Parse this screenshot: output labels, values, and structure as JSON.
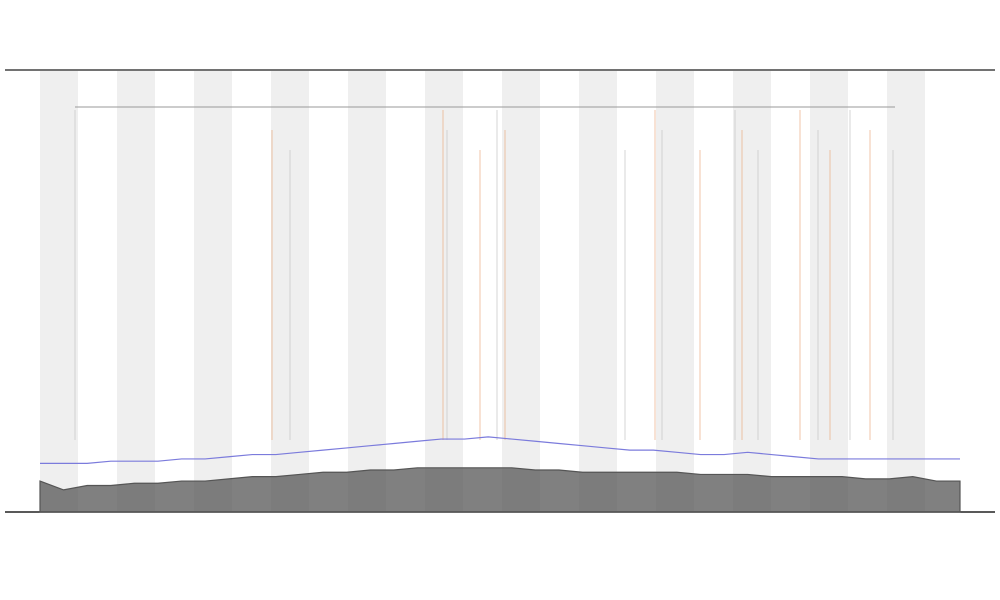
{
  "chart_data": {
    "type": "line",
    "x": [
      0,
      1,
      2,
      3,
      4,
      5,
      6,
      7,
      8,
      9,
      10,
      11,
      12,
      13,
      14,
      15,
      16,
      17,
      18,
      19,
      20,
      21,
      22,
      23,
      24,
      25,
      26,
      27,
      28,
      29,
      30,
      31,
      32,
      33,
      34,
      35,
      36,
      37,
      38,
      39
    ],
    "xlim": [
      0,
      39
    ],
    "ylim": [
      0,
      100
    ],
    "series": [
      {
        "color": "#7b7bdc",
        "fill": false,
        "values": [
          11,
          11,
          11,
          11.5,
          11.5,
          11.5,
          12,
          12,
          12.5,
          13,
          13,
          13.5,
          14,
          14.5,
          15,
          15.5,
          16,
          16.5,
          16.5,
          17,
          16.5,
          16,
          15.5,
          15,
          14.5,
          14,
          14,
          13.5,
          13,
          13,
          13.5,
          13,
          12.5,
          12,
          12,
          12,
          12,
          12,
          12,
          12
        ]
      },
      {
        "color": "#555555",
        "fill": true,
        "values": [
          7,
          5,
          6,
          6,
          6.5,
          6.5,
          7,
          7,
          7.5,
          8,
          8,
          8.5,
          9,
          9,
          9.5,
          9.5,
          10,
          10,
          10,
          10,
          10,
          9.5,
          9.5,
          9,
          9,
          9,
          9,
          9,
          8.5,
          8.5,
          8.5,
          8,
          8,
          8,
          8,
          7.5,
          7.5,
          8,
          7,
          7
        ]
      }
    ]
  }
}
